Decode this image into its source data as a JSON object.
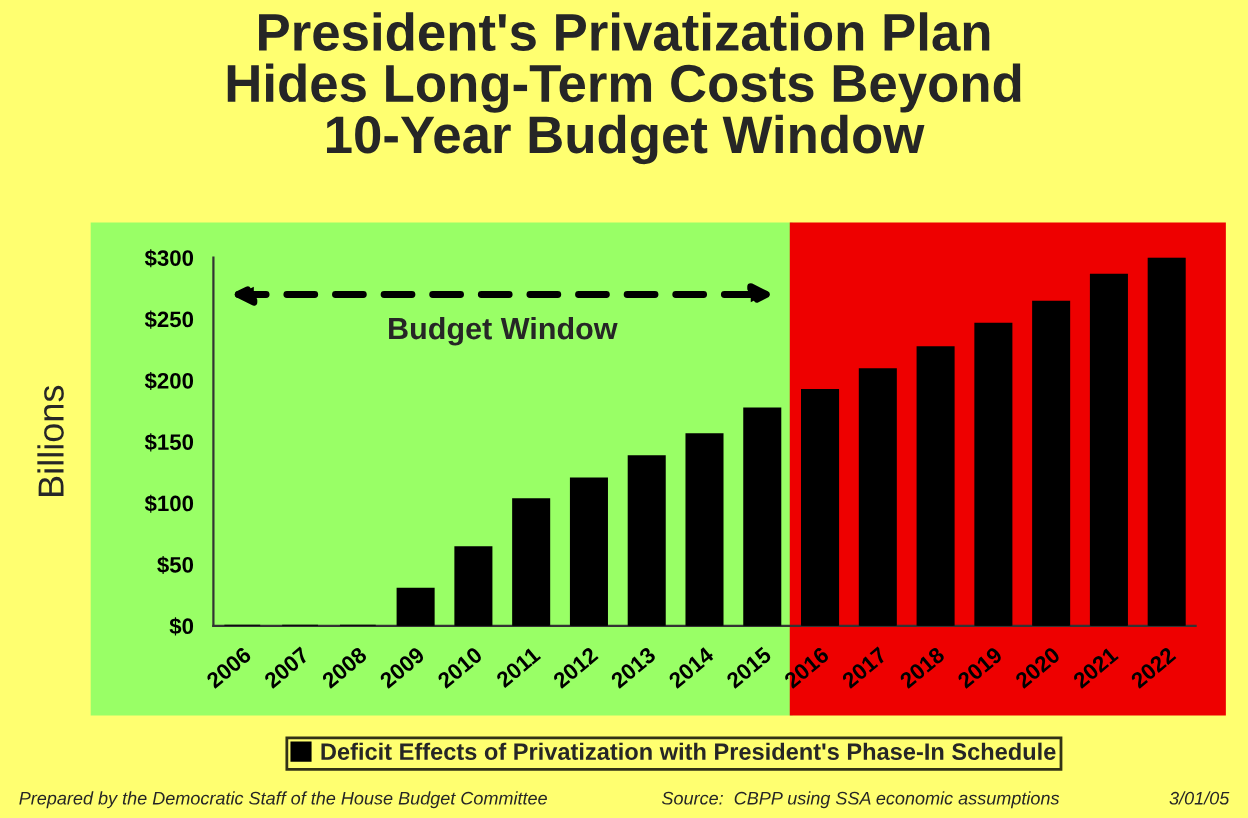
{
  "chart_data": {
    "type": "bar",
    "title": "President's Privatization Plan\nHides Long-Term Costs Beyond\n10-Year Budget Window",
    "ylabel": "Billions",
    "categories": [
      "2006",
      "2007",
      "2008",
      "2009",
      "2010",
      "2011",
      "2012",
      "2013",
      "2014",
      "2015",
      "2016",
      "2017",
      "2018",
      "2019",
      "2020",
      "2021",
      "2022"
    ],
    "series": [
      {
        "name": "Deficit Effects of Privatization with President's Phase-In Schedule",
        "color": "#000000",
        "values": [
          0,
          0,
          0,
          30,
          64,
          103,
          120,
          138,
          156,
          177,
          192,
          209,
          227,
          246,
          264,
          286,
          300
        ]
      }
    ],
    "ylim": [
      0,
      300
    ],
    "yticks": [
      {
        "value": 0,
        "label": "$0"
      },
      {
        "value": 50,
        "label": "$50"
      },
      {
        "value": 100,
        "label": "$100"
      },
      {
        "value": 150,
        "label": "$150"
      },
      {
        "value": 200,
        "label": "$200"
      },
      {
        "value": 250,
        "label": "$250"
      },
      {
        "value": 300,
        "label": "$300"
      }
    ],
    "bands": [
      {
        "axis": "x",
        "from": "2006",
        "to": "2015",
        "label": "Budget Window",
        "color": "#99ff66"
      },
      {
        "axis": "x",
        "from": "2016",
        "to": "2022",
        "color": "#ee0000"
      }
    ],
    "grid": false,
    "legend": "bottom",
    "annotations": [
      "Prepared by the Democratic Staff of the House Budget Committee",
      "Source:  CBPP using SSA economic assumptions",
      "3/01/05"
    ]
  }
}
